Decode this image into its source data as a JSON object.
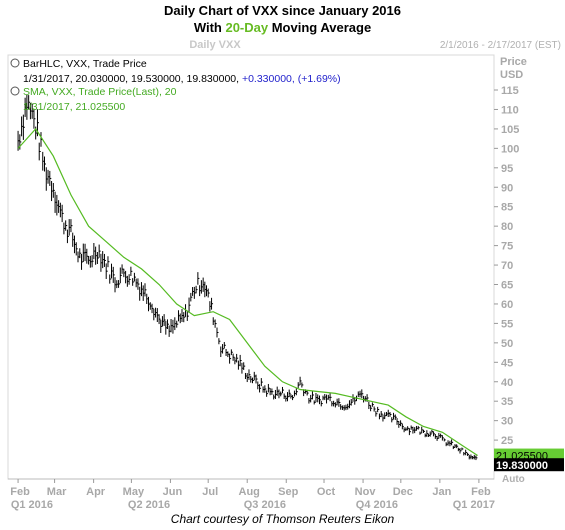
{
  "chart_data": {
    "type": "line",
    "title": "Daily Chart of VXX since January 2016",
    "subtitle_prefix": "With ",
    "subtitle_highlight": "20-Day",
    "subtitle_suffix": " Moving Average",
    "watermark": "Daily VXX",
    "date_range": "2/1/2016 - 2/17/2017 (EST)",
    "y_axis_title_1": "Price",
    "y_axis_title_2": "USD",
    "auto_label": "Auto",
    "ylim": [
      15,
      124
    ],
    "grid": false,
    "y_ticks": [
      25,
      30,
      35,
      40,
      45,
      50,
      55,
      60,
      65,
      70,
      75,
      80,
      85,
      90,
      95,
      100,
      105,
      110,
      115
    ],
    "x_tick_labels": [
      "Feb",
      "Mar",
      "Apr",
      "May",
      "Jun",
      "Jul",
      "Aug",
      "Sep",
      "Oct",
      "Nov",
      "Dec",
      "Jan",
      "Feb"
    ],
    "quarter_labels": [
      "Q1 2016",
      "Q2 2016",
      "Q3 2016",
      "Q4 2016",
      "Q1 2017"
    ],
    "colors": {
      "price_bars": "#000000",
      "sma": "#55bb22",
      "sma_text": "#44aa22",
      "legend_change": "#2222cc",
      "price_tag_bg": "#000000",
      "sma_tag_bg": "#66cc33"
    },
    "legend": {
      "price_line1": "BarHLC, VXX, Trade Price",
      "price_line2_prefix": "1/31/2017, 20.030000, 19.530000, 19.830000, ",
      "price_line2_change": "+0.330000, (+1.69%)",
      "sma_line1": "SMA, VXX, Trade Price(Last),  20",
      "sma_line2": "1/31/2017, 21.025500"
    },
    "last_price": 19.83,
    "last_price_label": "19.830000",
    "last_sma": 21.0255,
    "last_sma_label": "21.025500",
    "series": [
      {
        "name": "BarHLC, VXX, Trade Price",
        "x": [
          "2016-02-01",
          "2016-02-08",
          "2016-02-15",
          "2016-02-22",
          "2016-02-29",
          "2016-03-07",
          "2016-03-14",
          "2016-03-21",
          "2016-03-28",
          "2016-04-04",
          "2016-04-11",
          "2016-04-18",
          "2016-04-25",
          "2016-05-02",
          "2016-05-09",
          "2016-05-16",
          "2016-05-23",
          "2016-05-31",
          "2016-06-06",
          "2016-06-13",
          "2016-06-20",
          "2016-06-27",
          "2016-07-05",
          "2016-07-11",
          "2016-07-18",
          "2016-07-25",
          "2016-08-01",
          "2016-08-08",
          "2016-08-15",
          "2016-08-22",
          "2016-08-29",
          "2016-09-06",
          "2016-09-12",
          "2016-09-19",
          "2016-09-26",
          "2016-10-03",
          "2016-10-10",
          "2016-10-17",
          "2016-10-24",
          "2016-10-31",
          "2016-11-07",
          "2016-11-14",
          "2016-11-21",
          "2016-11-28",
          "2016-12-05",
          "2016-12-12",
          "2016-12-19",
          "2016-12-27",
          "2017-01-03",
          "2017-01-09",
          "2017-01-17",
          "2017-01-23",
          "2017-01-31"
        ],
        "values": [
          102,
          112,
          106,
          95,
          90,
          82,
          78,
          72,
          71,
          74,
          70,
          66,
          68,
          67,
          64,
          61,
          56,
          53,
          55,
          57,
          64,
          66,
          57,
          49,
          47,
          45,
          42,
          40,
          38,
          37,
          37,
          36,
          40,
          36,
          35,
          36,
          35,
          34,
          35,
          37,
          34,
          32,
          31,
          30,
          28,
          28,
          27,
          27,
          25,
          24,
          22.5,
          21,
          19.83
        ]
      },
      {
        "name": "SMA, VXX, Trade Price(Last),  20",
        "x": [
          "2016-02-01",
          "2016-02-15",
          "2016-02-29",
          "2016-03-14",
          "2016-03-28",
          "2016-04-11",
          "2016-04-25",
          "2016-05-09",
          "2016-05-23",
          "2016-06-06",
          "2016-06-20",
          "2016-07-05",
          "2016-07-18",
          "2016-08-01",
          "2016-08-15",
          "2016-08-29",
          "2016-09-12",
          "2016-09-26",
          "2016-10-10",
          "2016-10-24",
          "2016-11-07",
          "2016-11-21",
          "2016-12-05",
          "2016-12-19",
          "2017-01-03",
          "2017-01-17",
          "2017-01-31"
        ],
        "values": [
          100,
          105,
          98,
          88,
          80,
          76,
          72,
          69,
          65,
          60,
          57,
          58,
          56,
          50,
          44,
          40,
          38,
          37.5,
          37,
          36,
          35,
          34,
          31,
          28.5,
          27,
          24,
          21.03
        ]
      }
    ]
  }
}
